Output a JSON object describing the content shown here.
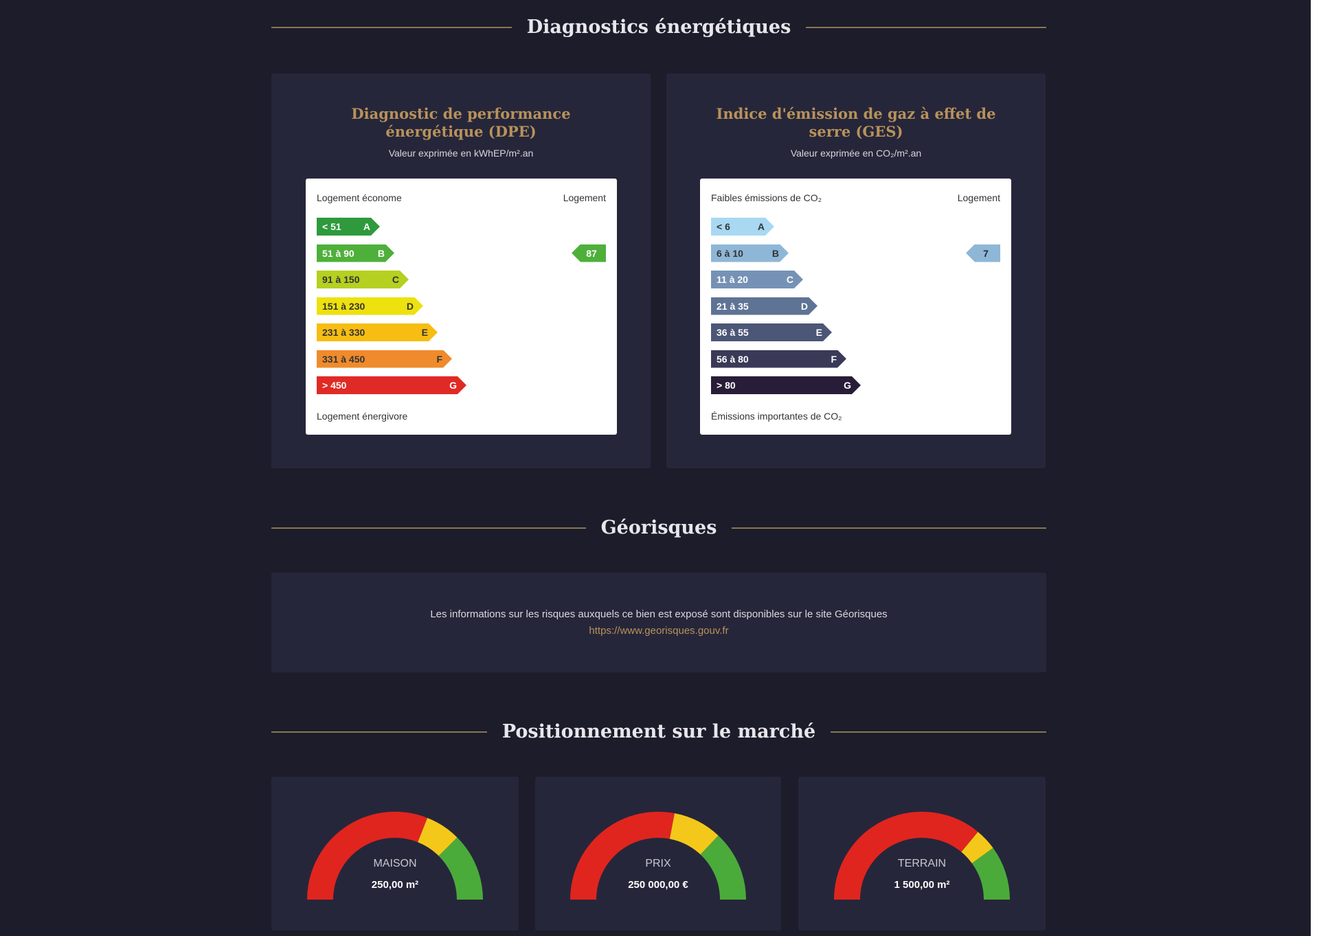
{
  "energy": {
    "heading": "Diagnostics énergétiques",
    "dpe": {
      "title": "Diagnostic de performance énergétique (DPE)",
      "subtitle": "Valeur exprimée en kWhEP/m².an",
      "top_left": "Logement économe",
      "top_right": "Logement",
      "bottom": "Logement énergivore",
      "classes": [
        {
          "range": "< 51",
          "letter": "A",
          "color": "#2e9a3c",
          "text_color": "#ffffff"
        },
        {
          "range": "51 à 90",
          "letter": "B",
          "color": "#4eb03a",
          "text_color": "#ffffff"
        },
        {
          "range": "91 à 150",
          "letter": "C",
          "color": "#b5d020",
          "text_color": "#333333"
        },
        {
          "range": "151 à 230",
          "letter": "D",
          "color": "#ede10e",
          "text_color": "#333333"
        },
        {
          "range": "231 à 330",
          "letter": "E",
          "color": "#f7bd12",
          "text_color": "#333333"
        },
        {
          "range": "331 à 450",
          "letter": "F",
          "color": "#ef8b2c",
          "text_color": "#333333"
        },
        {
          "range": "> 450",
          "letter": "G",
          "color": "#e02a25",
          "text_color": "#ffffff"
        }
      ],
      "value": "87",
      "value_class": "B",
      "value_color": "#4eb03a"
    },
    "ges": {
      "title": "Indice d'émission de gaz à effet de serre (GES)",
      "subtitle": "Valeur exprimée en CO₂/m².an",
      "top_left": "Faibles émissions de CO₂",
      "top_right": "Logement",
      "bottom": "Émissions importantes de CO₂",
      "classes": [
        {
          "range": "< 6",
          "letter": "A",
          "color": "#a8d8f2",
          "text_color": "#333333"
        },
        {
          "range": "6 à 10",
          "letter": "B",
          "color": "#8eb6d6",
          "text_color": "#333333"
        },
        {
          "range": "11 à 20",
          "letter": "C",
          "color": "#7592b4",
          "text_color": "#ffffff"
        },
        {
          "range": "21 à 35",
          "letter": "D",
          "color": "#5f7395",
          "text_color": "#ffffff"
        },
        {
          "range": "36 à 55",
          "letter": "E",
          "color": "#4c5676",
          "text_color": "#ffffff"
        },
        {
          "range": "56 à 80",
          "letter": "F",
          "color": "#3a3a58",
          "text_color": "#ffffff"
        },
        {
          "range": "> 80",
          "letter": "G",
          "color": "#281d38",
          "text_color": "#ffffff"
        }
      ],
      "value": "7",
      "value_class": "B",
      "value_color": "#8eb6d6"
    }
  },
  "georisques": {
    "heading": "Géorisques",
    "text": "Les informations sur les risques auxquels ce bien est exposé sont disponibles sur le site Géorisques",
    "link": "https://www.georisques.gouv.fr"
  },
  "market": {
    "heading": "Positionnement sur le marché",
    "colors": {
      "red": "#e0251f",
      "yellow": "#f4c81a",
      "green": "#4aab3a"
    },
    "gauges": [
      {
        "label": "MAISON",
        "value": "250,00 m²",
        "red_end": 0.62,
        "yellow_end": 0.75
      },
      {
        "label": "PRIX",
        "value": "250 000,00 €",
        "red_end": 0.56,
        "yellow_end": 0.74
      },
      {
        "label": "TERRAIN",
        "value": "1 500,00 m²",
        "red_end": 0.72,
        "yellow_end": 0.8
      }
    ]
  }
}
